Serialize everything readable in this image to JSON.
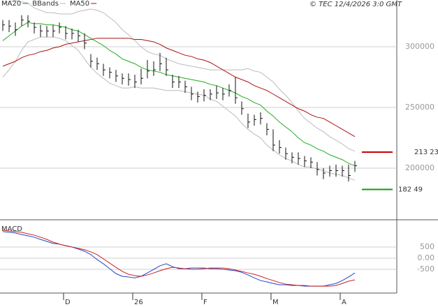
{
  "chart_data": [
    {
      "type": "ohlc",
      "title": "© TEC 12/4/2026 3:0 GMT",
      "categories": [
        null,
        null,
        null,
        null,
        null,
        null,
        null,
        null,
        null,
        null,
        "D",
        null,
        null,
        null,
        null,
        null,
        null,
        null,
        null,
        null,
        null,
        "26",
        null,
        null,
        null,
        null,
        null,
        null,
        null,
        null,
        null,
        null,
        "F",
        null,
        null,
        null,
        null,
        null,
        null,
        null,
        null,
        null,
        null,
        "M",
        null,
        null,
        null,
        null,
        null,
        null,
        null,
        null,
        null,
        null,
        "A",
        null,
        null
      ],
      "high": [
        3220,
        3220,
        3200,
        3260,
        3260,
        3200,
        3180,
        3170,
        3180,
        3200,
        3170,
        3150,
        3140,
        3110,
        2940,
        2910,
        2860,
        2830,
        2810,
        2780,
        2780,
        2770,
        2820,
        2890,
        2880,
        2950,
        2910,
        2770,
        2760,
        2720,
        2670,
        2630,
        2650,
        2650,
        2680,
        2660,
        2690,
        2750,
        2550,
        2450,
        2440,
        2460,
        2370,
        2320,
        2230,
        2170,
        2130,
        2130,
        2100,
        2090,
        2050,
        2000,
        2020,
        2030,
        2020,
        2030,
        2060
      ],
      "low": [
        3130,
        3120,
        3090,
        3170,
        3160,
        3110,
        3080,
        3080,
        3080,
        3110,
        3060,
        3060,
        3040,
        2980,
        2830,
        2810,
        2760,
        2740,
        2710,
        2690,
        2680,
        2660,
        2690,
        2740,
        2760,
        2800,
        2760,
        2660,
        2660,
        2620,
        2560,
        2540,
        2550,
        2560,
        2570,
        2560,
        2590,
        2530,
        2440,
        2330,
        2350,
        2360,
        2270,
        2140,
        2120,
        2070,
        2040,
        2030,
        2010,
        2000,
        1940,
        1910,
        1930,
        1930,
        1930,
        1890,
        1970
      ],
      "close": [
        3180,
        3170,
        3140,
        3220,
        3210,
        3160,
        3130,
        3130,
        3130,
        3160,
        3110,
        3110,
        3090,
        3030,
        2880,
        2860,
        2810,
        2790,
        2760,
        2740,
        2730,
        2710,
        2740,
        2800,
        2810,
        2860,
        2810,
        2710,
        2710,
        2670,
        2610,
        2590,
        2600,
        2610,
        2620,
        2610,
        2640,
        2580,
        2490,
        2380,
        2400,
        2410,
        2320,
        2190,
        2170,
        2120,
        2090,
        2080,
        2060,
        2050,
        1990,
        1960,
        1980,
        1980,
        1980,
        1940,
        2020
      ],
      "bar_color": "#111111",
      "series": [
        {
          "name": "MA20",
          "color": "#22aa22",
          "values": [
            3050,
            3090,
            3130,
            3170,
            3200,
            3190,
            3190,
            3180,
            3180,
            3170,
            3160,
            3140,
            3130,
            3100,
            3070,
            3040,
            3010,
            2970,
            2940,
            2900,
            2880,
            2860,
            2830,
            2810,
            2800,
            2790,
            2770,
            2760,
            2750,
            2740,
            2730,
            2720,
            2710,
            2690,
            2680,
            2660,
            2640,
            2620,
            2590,
            2570,
            2540,
            2520,
            2470,
            2430,
            2380,
            2340,
            2300,
            2250,
            2210,
            2190,
            2160,
            2140,
            2110,
            2090,
            2070,
            2040,
            2020
          ]
        },
        {
          "name": "BBands",
          "color": "#bbbbbb",
          "upper": [
            3350,
            3370,
            3380,
            3370,
            3360,
            3320,
            3300,
            3280,
            3280,
            3270,
            3270,
            3270,
            3290,
            3300,
            3310,
            3300,
            3280,
            3240,
            3200,
            3140,
            3100,
            3050,
            3000,
            2960,
            2940,
            2930,
            2900,
            2880,
            2860,
            2850,
            2840,
            2830,
            2820,
            2810,
            2810,
            2810,
            2810,
            2810,
            2810,
            2820,
            2800,
            2790,
            2750,
            2710,
            2650,
            2600,
            2540,
            2470,
            2410,
            2370,
            2330,
            2300,
            2260,
            2230,
            2200,
            2160,
            2140
          ],
          "lower": [
            2750,
            2810,
            2880,
            2970,
            3040,
            3060,
            3080,
            3080,
            3080,
            3070,
            3050,
            3010,
            2970,
            2900,
            2830,
            2780,
            2740,
            2700,
            2680,
            2660,
            2660,
            2670,
            2660,
            2660,
            2660,
            2650,
            2640,
            2640,
            2640,
            2630,
            2620,
            2610,
            2600,
            2570,
            2550,
            2510,
            2470,
            2430,
            2370,
            2320,
            2280,
            2250,
            2190,
            2150,
            2110,
            2080,
            2060,
            2030,
            2010,
            2010,
            1990,
            1980,
            1960,
            1950,
            1940,
            1920,
            1900
          ]
        },
        {
          "name": "MA50",
          "color": "#aa1111",
          "values": [
            2840,
            2860,
            2880,
            2910,
            2930,
            2940,
            2960,
            2970,
            2990,
            3000,
            3020,
            3030,
            3040,
            3050,
            3060,
            3070,
            3070,
            3070,
            3070,
            3070,
            3070,
            3060,
            3060,
            3050,
            3040,
            3020,
            2990,
            2970,
            2950,
            2930,
            2920,
            2900,
            2890,
            2870,
            2840,
            2810,
            2780,
            2750,
            2730,
            2710,
            2680,
            2660,
            2640,
            2610,
            2580,
            2550,
            2520,
            2490,
            2470,
            2440,
            2420,
            2410,
            2380,
            2350,
            2320,
            2290,
            2260
          ]
        }
      ],
      "levels": [
        {
          "value": 2132.3,
          "label": "213 23",
          "color": "#cc0000"
        },
        {
          "value": 1824.9,
          "label": "182 49",
          "color": "#119911"
        }
      ],
      "ylim": [
        1575,
        3385
      ],
      "yticks": [
        {
          "value": 3000,
          "label": "300000"
        },
        {
          "value": 2500,
          "label": "250000"
        },
        {
          "value": 2000,
          "label": "200000"
        }
      ],
      "grid": true
    },
    {
      "type": "line",
      "title": "MACD",
      "series": [
        {
          "color": "#2244cc",
          "values": [
            1190,
            1160,
            1130,
            1060,
            1000,
            940,
            840,
            750,
            660,
            630,
            560,
            500,
            410,
            310,
            160,
            -60,
            -250,
            -470,
            -690,
            -810,
            -840,
            -880,
            -810,
            -660,
            -500,
            -340,
            -250,
            -380,
            -470,
            -470,
            -440,
            -440,
            -440,
            -470,
            -470,
            -500,
            -530,
            -560,
            -630,
            -750,
            -880,
            -1000,
            -1060,
            -1130,
            -1190,
            -1190,
            -1220,
            -1220,
            -1250,
            -1250,
            -1250,
            -1250,
            -1190,
            -1130,
            -1000,
            -840,
            -660
          ]
        },
        {
          "color": "#cc2222",
          "values": [
            1250,
            1220,
            1190,
            1160,
            1090,
            1030,
            940,
            840,
            720,
            630,
            560,
            500,
            440,
            380,
            280,
            160,
            -30,
            -220,
            -410,
            -590,
            -720,
            -780,
            -810,
            -750,
            -660,
            -560,
            -470,
            -410,
            -440,
            -470,
            -500,
            -500,
            -470,
            -440,
            -440,
            -440,
            -470,
            -530,
            -590,
            -660,
            -720,
            -810,
            -910,
            -1000,
            -1090,
            -1160,
            -1190,
            -1220,
            -1220,
            -1250,
            -1250,
            -1250,
            -1250,
            -1220,
            -1130,
            -1030,
            -970
          ]
        }
      ],
      "ylim": [
        -1560,
        1625
      ],
      "yticks": [
        500,
        {
          "value": 0,
          "label": "0.00"
        },
        -500
      ],
      "grid": true
    }
  ]
}
